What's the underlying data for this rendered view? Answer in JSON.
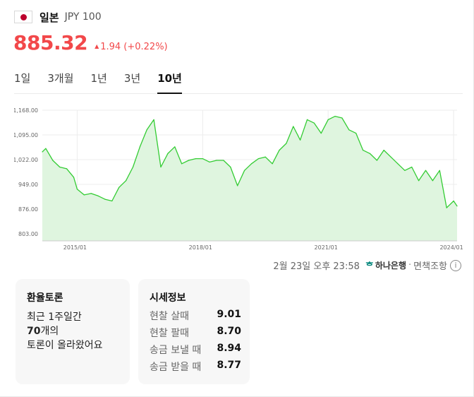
{
  "header": {
    "flag_icon": "japan-flag-icon",
    "country": "일본",
    "currency_code": "JPY 100"
  },
  "quote": {
    "price": "885.32",
    "change_arrow": "▲",
    "change": "1.94 (+0.22%)",
    "color": "#f2484a"
  },
  "tabs": [
    {
      "label": "1일",
      "active": false
    },
    {
      "label": "3개월",
      "active": false
    },
    {
      "label": "1년",
      "active": false
    },
    {
      "label": "3년",
      "active": false
    },
    {
      "label": "10년",
      "active": true
    }
  ],
  "chart_data": {
    "type": "area",
    "title": "",
    "xlabel": "",
    "ylabel": "",
    "y_ticks": [
      "1,168.00",
      "1,095.00",
      "1,022.00",
      "949.00",
      "876.00",
      "803.00"
    ],
    "ylim": [
      803,
      1168
    ],
    "x_ticks": [
      "2015/01",
      "2018/01",
      "2021/01",
      "2024/01"
    ],
    "grid": true,
    "line_color": "#33cc33",
    "fill_color": "#dff5df",
    "x": [
      "2014/03",
      "2014/04",
      "2014/06",
      "2014/08",
      "2014/10",
      "2014/12",
      "2015/01",
      "2015/03",
      "2015/05",
      "2015/07",
      "2015/09",
      "2015/11",
      "2016/01",
      "2016/03",
      "2016/05",
      "2016/07",
      "2016/09",
      "2016/11",
      "2017/01",
      "2017/03",
      "2017/05",
      "2017/07",
      "2017/09",
      "2017/11",
      "2018/01",
      "2018/03",
      "2018/05",
      "2018/07",
      "2018/09",
      "2018/11",
      "2019/01",
      "2019/03",
      "2019/05",
      "2019/07",
      "2019/09",
      "2019/11",
      "2020/01",
      "2020/03",
      "2020/05",
      "2020/07",
      "2020/09",
      "2020/11",
      "2021/01",
      "2021/03",
      "2021/05",
      "2021/07",
      "2021/09",
      "2021/11",
      "2022/01",
      "2022/03",
      "2022/05",
      "2022/07",
      "2022/09",
      "2022/11",
      "2023/01",
      "2023/03",
      "2023/05",
      "2023/07",
      "2023/09",
      "2023/11",
      "2024/01",
      "2024/02"
    ],
    "values": [
      1045,
      1055,
      1020,
      1000,
      995,
      970,
      935,
      918,
      922,
      915,
      905,
      900,
      940,
      960,
      1000,
      1060,
      1110,
      1140,
      1000,
      1040,
      1060,
      1010,
      1020,
      1025,
      1025,
      1015,
      1020,
      1020,
      1000,
      945,
      990,
      1010,
      1025,
      1030,
      1010,
      1050,
      1070,
      1120,
      1080,
      1140,
      1130,
      1100,
      1140,
      1150,
      1145,
      1110,
      1100,
      1050,
      1040,
      1020,
      1050,
      1030,
      1010,
      990,
      1000,
      960,
      990,
      960,
      990,
      880,
      900,
      885
    ]
  },
  "update": {
    "timestamp": "2월 23일 오후 23:58",
    "bank_icon": "hana-bank-logo-icon",
    "bank": "하나은행",
    "separator": "·",
    "disclaimer": "면책조항",
    "info_icon": "info-circle-icon",
    "info_glyph": "i"
  },
  "forum": {
    "title": "환율토론",
    "line1": "최근 1주일간",
    "count": "70",
    "count_suffix": "개의",
    "line3": "토론이 올라왔어요"
  },
  "rates": {
    "title": "시세정보",
    "rows": [
      {
        "label": "현찰 살때",
        "value": "9.01"
      },
      {
        "label": "현찰 팔때",
        "value": "8.70"
      },
      {
        "label": "송금 보낼 때",
        "value": "8.94"
      },
      {
        "label": "송금 받을 때",
        "value": "8.77"
      }
    ]
  }
}
